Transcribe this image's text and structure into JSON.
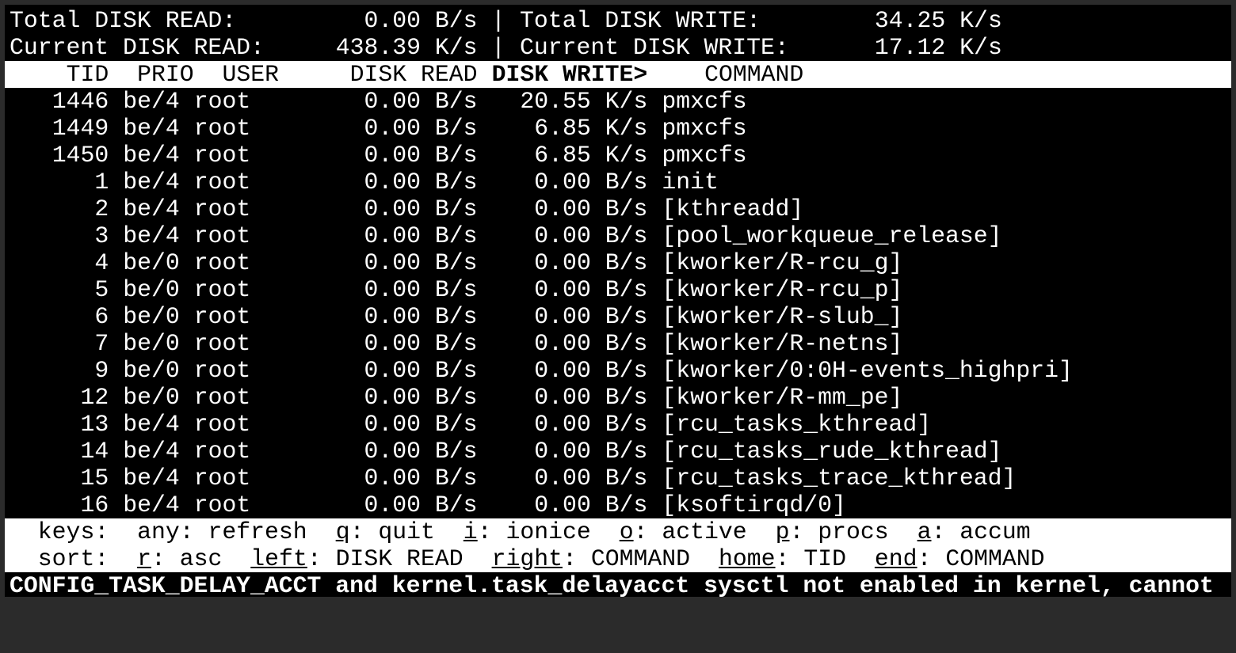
{
  "summary": {
    "total_read_label": "Total DISK READ:",
    "total_read": "0.00 B/s",
    "total_write_label": "Total DISK WRITE:",
    "total_write": "34.25 K/s",
    "current_read_label": "Current DISK READ:",
    "current_read": "438.39 K/s",
    "current_write_label": "Current DISK WRITE:",
    "current_write": "17.12 K/s",
    "separator": "|"
  },
  "header": {
    "tid": "TID",
    "prio": "PRIO",
    "user": "USER",
    "disk_read": "DISK READ",
    "disk_write": "DISK WRITE>",
    "command": "COMMAND"
  },
  "rows": [
    {
      "tid": "1446",
      "prio": "be/4",
      "user": "root",
      "read": "0.00 B/s",
      "write": "20.55 K/s",
      "command": "pmxcfs"
    },
    {
      "tid": "1449",
      "prio": "be/4",
      "user": "root",
      "read": "0.00 B/s",
      "write": "6.85 K/s",
      "command": "pmxcfs"
    },
    {
      "tid": "1450",
      "prio": "be/4",
      "user": "root",
      "read": "0.00 B/s",
      "write": "6.85 K/s",
      "command": "pmxcfs"
    },
    {
      "tid": "1",
      "prio": "be/4",
      "user": "root",
      "read": "0.00 B/s",
      "write": "0.00 B/s",
      "command": "init"
    },
    {
      "tid": "2",
      "prio": "be/4",
      "user": "root",
      "read": "0.00 B/s",
      "write": "0.00 B/s",
      "command": "[kthreadd]"
    },
    {
      "tid": "3",
      "prio": "be/4",
      "user": "root",
      "read": "0.00 B/s",
      "write": "0.00 B/s",
      "command": "[pool_workqueue_release]"
    },
    {
      "tid": "4",
      "prio": "be/0",
      "user": "root",
      "read": "0.00 B/s",
      "write": "0.00 B/s",
      "command": "[kworker/R-rcu_g]"
    },
    {
      "tid": "5",
      "prio": "be/0",
      "user": "root",
      "read": "0.00 B/s",
      "write": "0.00 B/s",
      "command": "[kworker/R-rcu_p]"
    },
    {
      "tid": "6",
      "prio": "be/0",
      "user": "root",
      "read": "0.00 B/s",
      "write": "0.00 B/s",
      "command": "[kworker/R-slub_]"
    },
    {
      "tid": "7",
      "prio": "be/0",
      "user": "root",
      "read": "0.00 B/s",
      "write": "0.00 B/s",
      "command": "[kworker/R-netns]"
    },
    {
      "tid": "9",
      "prio": "be/0",
      "user": "root",
      "read": "0.00 B/s",
      "write": "0.00 B/s",
      "command": "[kworker/0:0H-events_highpri]"
    },
    {
      "tid": "12",
      "prio": "be/0",
      "user": "root",
      "read": "0.00 B/s",
      "write": "0.00 B/s",
      "command": "[kworker/R-mm_pe]"
    },
    {
      "tid": "13",
      "prio": "be/4",
      "user": "root",
      "read": "0.00 B/s",
      "write": "0.00 B/s",
      "command": "[rcu_tasks_kthread]"
    },
    {
      "tid": "14",
      "prio": "be/4",
      "user": "root",
      "read": "0.00 B/s",
      "write": "0.00 B/s",
      "command": "[rcu_tasks_rude_kthread]"
    },
    {
      "tid": "15",
      "prio": "be/4",
      "user": "root",
      "read": "0.00 B/s",
      "write": "0.00 B/s",
      "command": "[rcu_tasks_trace_kthread]"
    },
    {
      "tid": "16",
      "prio": "be/4",
      "user": "root",
      "read": "0.00 B/s",
      "write": "0.00 B/s",
      "command": "[ksoftirqd/0]"
    }
  ],
  "keys_line": {
    "label": "keys:",
    "items": [
      {
        "key": "",
        "desc": "any: refresh"
      },
      {
        "key": "q",
        "desc": ": quit"
      },
      {
        "key": "i",
        "desc": ": ionice"
      },
      {
        "key": "o",
        "desc": ": active"
      },
      {
        "key": "p",
        "desc": ": procs"
      },
      {
        "key": "a",
        "desc": ": accum"
      }
    ]
  },
  "sort_line": {
    "label": "sort:",
    "items": [
      {
        "key": "r",
        "desc": ": asc"
      },
      {
        "key": "left",
        "desc": ": DISK READ"
      },
      {
        "key": "right",
        "desc": ": COMMAND"
      },
      {
        "key": "home",
        "desc": ": TID"
      },
      {
        "key": "end",
        "desc": ": COMMAND"
      }
    ]
  },
  "warning": "CONFIG_TASK_DELAY_ACCT and kernel.task_delayacct sysctl not enabled in kernel, cannot"
}
